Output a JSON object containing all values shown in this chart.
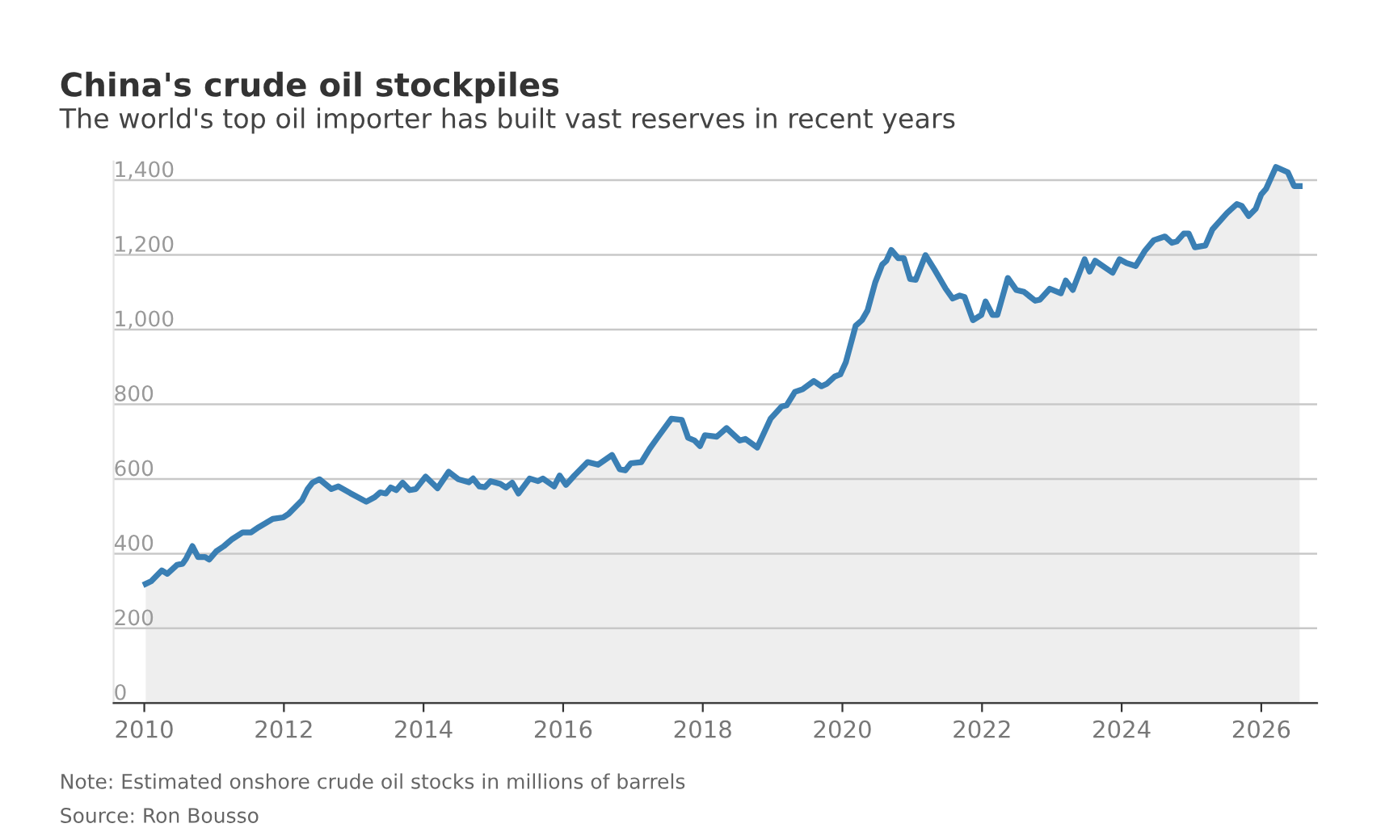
{
  "chart_data": {
    "type": "area",
    "title": "China's crude oil stockpiles",
    "subtitle": "The world's top oil importer has built vast reserves in recent years",
    "annotations": [
      "Note: Estimated onshore crude oil stocks in millions of barrels",
      "Source: Ron Bousso"
    ],
    "series": [
      {
        "color": "#3a7fb4",
        "x": [
          2010.02,
          2010.1,
          2010.25,
          2010.33,
          2010.47,
          2010.55,
          2010.6,
          2010.69,
          2010.77,
          2010.87,
          2010.93,
          2011.03,
          2011.14,
          2011.26,
          2011.41,
          2011.53,
          2011.64,
          2011.84,
          2011.99,
          2012.07,
          2012.26,
          2012.34,
          2012.41,
          2012.51,
          2012.68,
          2012.78,
          2012.95,
          2013.18,
          2013.3,
          2013.38,
          2013.46,
          2013.53,
          2013.61,
          2013.7,
          2013.8,
          2013.89,
          2014.03,
          2014.2,
          2014.36,
          2014.5,
          2014.65,
          2014.71,
          2014.8,
          2014.88,
          2014.96,
          2015.1,
          2015.18,
          2015.27,
          2015.36,
          2015.52,
          2015.64,
          2015.71,
          2015.87,
          2015.95,
          2016.04,
          2016.16,
          2016.35,
          2016.5,
          2016.7,
          2016.81,
          2016.89,
          2016.97,
          2017.12,
          2017.24,
          2017.35,
          2017.55,
          2017.7,
          2017.79,
          2017.88,
          2017.96,
          2018.03,
          2018.2,
          2018.34,
          2018.53,
          2018.61,
          2018.78,
          2018.97,
          2019.13,
          2019.2,
          2019.32,
          2019.43,
          2019.59,
          2019.7,
          2019.78,
          2019.89,
          2019.97,
          2020.05,
          2020.19,
          2020.28,
          2020.36,
          2020.47,
          2020.57,
          2020.63,
          2020.7,
          2020.8,
          2020.88,
          2020.97,
          2021.05,
          2021.19,
          2021.32,
          2021.48,
          2021.58,
          2021.68,
          2021.75,
          2021.87,
          2021.99,
          2022.05,
          2022.15,
          2022.22,
          2022.37,
          2022.49,
          2022.6,
          2022.76,
          2022.83,
          2022.97,
          2023.13,
          2023.2,
          2023.3,
          2023.47,
          2023.54,
          2023.62,
          2023.87,
          2023.97,
          2024.07,
          2024.2,
          2024.33,
          2024.46,
          2024.62,
          2024.72,
          2024.79,
          2024.89,
          2024.96,
          2025.05,
          2025.2,
          2025.3,
          2025.51,
          2025.65,
          2025.72,
          2025.82,
          2025.92,
          2026.0,
          2026.07,
          2026.21,
          2026.38,
          2026.47,
          2026.55
        ],
        "values": [
          319,
          326,
          355,
          346,
          370,
          373,
          387,
          420,
          391,
          391,
          384,
          406,
          420,
          439,
          457,
          457,
          471,
          493,
          497,
          507,
          543,
          573,
          590,
          599,
          573,
          580,
          562,
          539,
          551,
          564,
          561,
          577,
          570,
          590,
          570,
          573,
          606,
          575,
          619,
          599,
          591,
          601,
          580,
          578,
          594,
          587,
          577,
          590,
          561,
          601,
          594,
          601,
          580,
          609,
          584,
          609,
          645,
          638,
          664,
          626,
          623,
          642,
          645,
          681,
          710,
          761,
          758,
          710,
          703,
          688,
          717,
          713,
          736,
          703,
          707,
          684,
          761,
          794,
          797,
          833,
          840,
          862,
          848,
          855,
          874,
          880,
          913,
          1010,
          1025,
          1051,
          1126,
          1174,
          1184,
          1213,
          1191,
          1191,
          1135,
          1133,
          1199,
          1160,
          1109,
          1083,
          1091,
          1087,
          1025,
          1039,
          1075,
          1039,
          1039,
          1138,
          1106,
          1101,
          1077,
          1080,
          1109,
          1097,
          1131,
          1106,
          1188,
          1155,
          1184,
          1152,
          1188,
          1178,
          1170,
          1210,
          1239,
          1249,
          1232,
          1236,
          1257,
          1257,
          1220,
          1225,
          1268,
          1312,
          1336,
          1331,
          1304,
          1323,
          1362,
          1377,
          1435,
          1421,
          1384,
          1384
        ]
      }
    ],
    "xlim": [
      2009.56,
      2026.8
    ],
    "xticks": [
      2010,
      2012,
      2014,
      2016,
      2018,
      2020,
      2022,
      2024,
      2026
    ],
    "ylim": [
      0,
      1450
    ],
    "yticks": [
      0,
      200,
      400,
      600,
      800,
      {
        "value": 1000,
        "label": "1,000"
      },
      {
        "value": 1200,
        "label": "1,200"
      },
      {
        "value": 1400,
        "label": "1,400"
      }
    ],
    "grid": "y",
    "legend": false,
    "marker": "none",
    "line_style": "solid"
  }
}
